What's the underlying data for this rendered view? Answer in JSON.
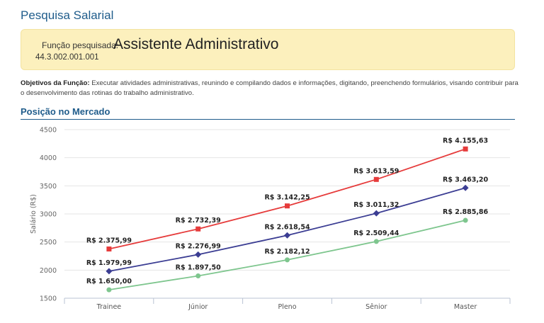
{
  "page": {
    "title": "Pesquisa Salarial"
  },
  "function": {
    "label": "Função pesquisada:",
    "title": "Assistente Administrativo",
    "code": "44.3.002.001.001"
  },
  "objectives": {
    "label": "Objetivos da Função:",
    "text": "Executar atividades administrativas, reunindo e compilando dados e informações, digitando, preenchendo formulários, visando contribuir para o desenvolvimento das rotinas do trabalho administrativo."
  },
  "section": {
    "title": "Posição no Mercado"
  },
  "chart_data": {
    "type": "line",
    "title": "",
    "xlabel": "",
    "ylabel": "Salário (R$)",
    "categories": [
      "Trainee",
      "Júnior",
      "Pleno",
      "Sênior",
      "Master"
    ],
    "ylim": [
      1500,
      4500
    ],
    "yticks": [
      1500,
      2000,
      2500,
      3000,
      3500,
      4000,
      4500
    ],
    "grid": true,
    "series": [
      {
        "values": [
          2375.99,
          2732.39,
          3142.25,
          3613.59,
          4155.63
        ],
        "labels": [
          "R$ 2.375,99",
          "R$ 2.732,39",
          "R$ 3.142,25",
          "R$ 3.613,59",
          "R$ 4.155,63"
        ],
        "color": "#e63b3b",
        "marker": "square"
      },
      {
        "values": [
          1979.99,
          2276.99,
          2618.54,
          3011.32,
          3463.2
        ],
        "labels": [
          "R$ 1.979,99",
          "R$ 2.276,99",
          "R$ 2.618,54",
          "R$ 3.011,32",
          "R$ 3.463,20"
        ],
        "color": "#3b3d93",
        "marker": "diamond"
      },
      {
        "values": [
          1650.0,
          1897.5,
          2182.12,
          2509.44,
          2885.86
        ],
        "labels": [
          "R$ 1.650,00",
          "R$ 1.897,50",
          "R$ 2.182,12",
          "R$ 2.509,44",
          "R$ 2.885,86"
        ],
        "color": "#7ec68e",
        "marker": "circle"
      }
    ]
  }
}
